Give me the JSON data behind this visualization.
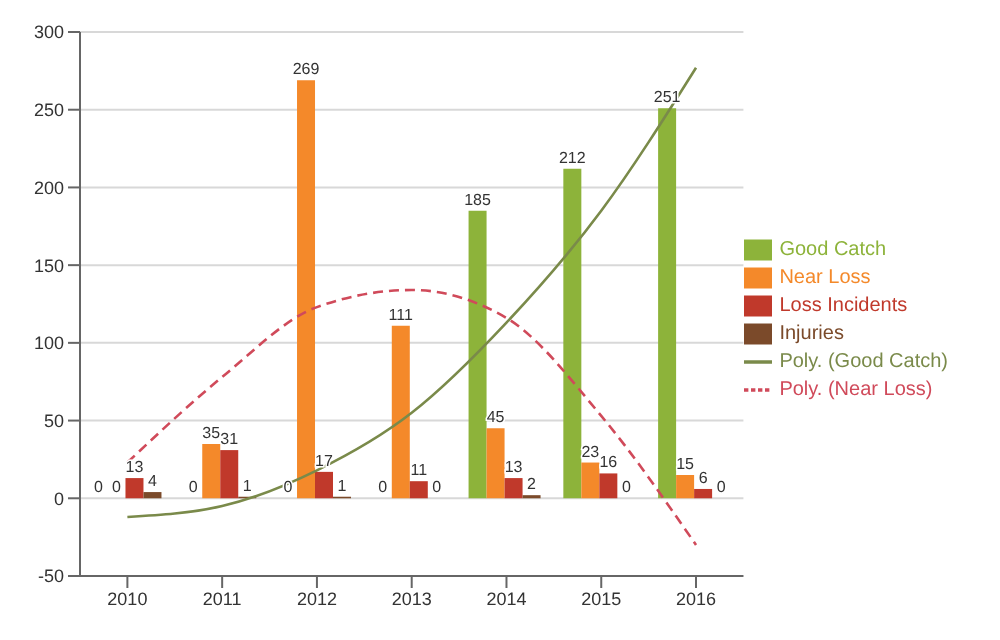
{
  "chart_data": {
    "type": "bar",
    "categories": [
      "2010",
      "2011",
      "2012",
      "2013",
      "2014",
      "2015",
      "2016"
    ],
    "series": [
      {
        "name": "Good Catch",
        "color": "#8db33a",
        "values": [
          0,
          0,
          0,
          0,
          185,
          212,
          251
        ],
        "value_labels": [
          "0",
          "0",
          "0",
          "0",
          "185",
          "212",
          "251"
        ]
      },
      {
        "name": "Near Loss",
        "color": "#f4892a",
        "values": [
          0,
          35,
          269,
          111,
          45,
          23,
          15
        ],
        "value_labels": [
          "0",
          "35",
          "269",
          "111",
          "45",
          "23",
          "15"
        ]
      },
      {
        "name": "Loss Incidents",
        "color": "#c0392b",
        "values": [
          13,
          31,
          17,
          11,
          13,
          16,
          6
        ],
        "value_labels": [
          "13",
          "31",
          "17",
          "11",
          "13",
          "16",
          "6"
        ]
      },
      {
        "name": "Injuries",
        "color": "#7b4a2a",
        "values": [
          4,
          1,
          1,
          0,
          2,
          0,
          0
        ],
        "value_labels": [
          "4",
          "1",
          "1",
          "0",
          "2",
          "0",
          "0"
        ]
      },
      {
        "name": "Poly. (Good Catch)",
        "type": "line",
        "color": "#7a8a4a",
        "line_style": "solid",
        "values": [
          -12,
          -5,
          18,
          55,
          113,
          185,
          277
        ]
      },
      {
        "name": "Poly. (Near Loss)",
        "type": "line",
        "color": "#d04a5a",
        "line_style": "dashed",
        "values": [
          23,
          78,
          123,
          134,
          116,
          53,
          -30
        ]
      }
    ],
    "ylim": [
      -50,
      300
    ],
    "yticks": [
      -50,
      0,
      50,
      100,
      150,
      200,
      250,
      300
    ],
    "grid": "y",
    "legend": "right",
    "marker": "none"
  }
}
